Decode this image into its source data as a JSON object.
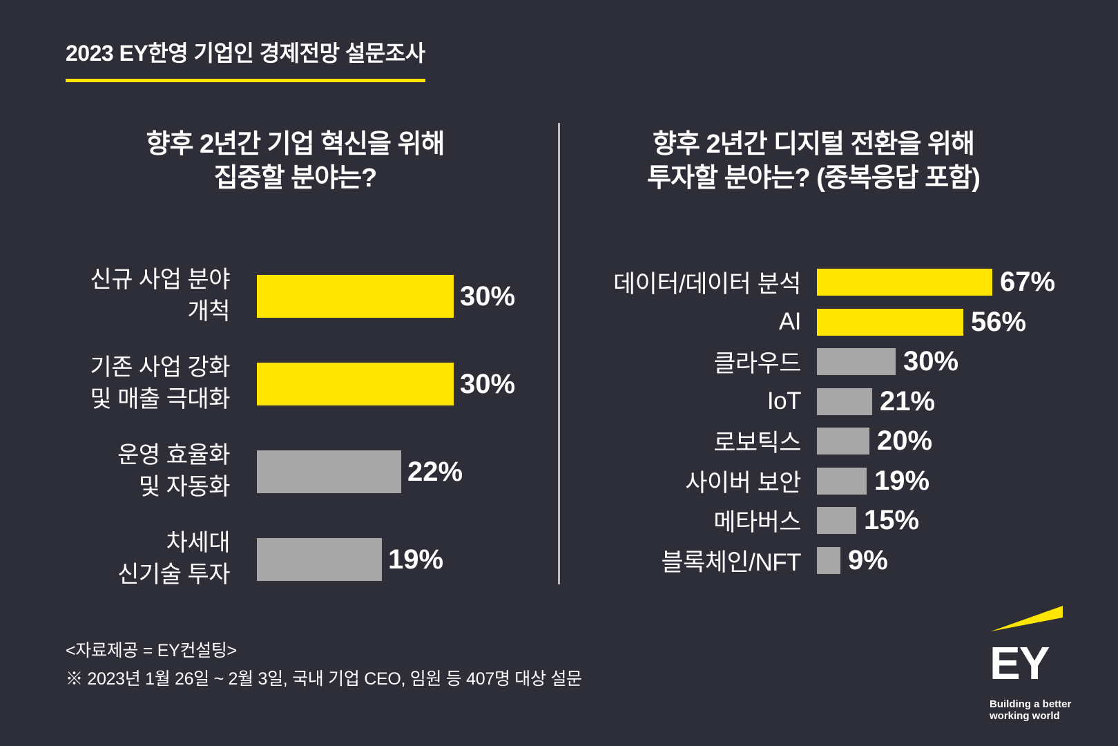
{
  "page": {
    "header": {
      "title": "2023 EY한영 기업인 경제전망 설문조사"
    },
    "footer": {
      "source": "<자료제공 = EY컨설팅>",
      "note": "※ 2023년 1월 26일 ~ 2월 3일, 국내 기업 CEO, 임원 등 407명 대상 설문"
    },
    "logo": {
      "wordmark": "EY",
      "tagline_line1": "Building a better",
      "tagline_line2": "working world"
    },
    "colors": {
      "background": "#2E2E38",
      "accent_yellow": "#FFE600",
      "bar_gray": "#A7A7A8",
      "text": "#FFFFFF",
      "divider": "#BEBEC2"
    }
  },
  "chart_data": [
    {
      "type": "bar",
      "orientation": "horizontal",
      "title": "향후 2년간 기업 혁신을 위해 집중할 분야는?",
      "title_lines": [
        "향후 2년간 기업 혁신을 위해",
        "집중할 분야는?"
      ],
      "categories": [
        "신규 사업 분야 개척",
        "기존 사업 강화 및 매출 극대화",
        "운영 효율화 및 자동화",
        "차세대 신기술 투자"
      ],
      "category_lines": [
        [
          "신규 사업 분야",
          "개척"
        ],
        [
          "기존 사업 강화",
          "및 매출 극대화"
        ],
        [
          "운영 효율화",
          "및 자동화"
        ],
        [
          "차세대",
          "신기술 투자"
        ]
      ],
      "values": [
        30,
        30,
        22,
        19
      ],
      "value_labels": [
        "30%",
        "30%",
        "22%",
        "19%"
      ],
      "bar_colors": [
        "#FFE600",
        "#FFE600",
        "#A7A7A8",
        "#A7A7A8"
      ],
      "xlim": [
        0,
        30
      ],
      "grid": false,
      "value_label_position": "outside-right"
    },
    {
      "type": "bar",
      "orientation": "horizontal",
      "title": "향후 2년간 디지털 전환을 위해 투자할 분야는? (중복응답 포함)",
      "title_lines": [
        "향후 2년간 디지털 전환을 위해",
        "투자할 분야는? (중복응답 포함)"
      ],
      "categories": [
        "데이터/데이터 분석",
        "AI",
        "클라우드",
        "IoT",
        "로보틱스",
        "사이버 보안",
        "메타버스",
        "블록체인/NFT"
      ],
      "values": [
        67,
        56,
        30,
        21,
        20,
        19,
        15,
        9
      ],
      "value_labels": [
        "67%",
        "56%",
        "30%",
        "21%",
        "20%",
        "19%",
        "15%",
        "9%"
      ],
      "bar_colors": [
        "#FFE600",
        "#FFE600",
        "#A7A7A8",
        "#A7A7A8",
        "#A7A7A8",
        "#A7A7A8",
        "#A7A7A8",
        "#A7A7A8"
      ],
      "xlim": [
        0,
        67
      ],
      "grid": false,
      "value_label_position": "outside-right"
    }
  ]
}
